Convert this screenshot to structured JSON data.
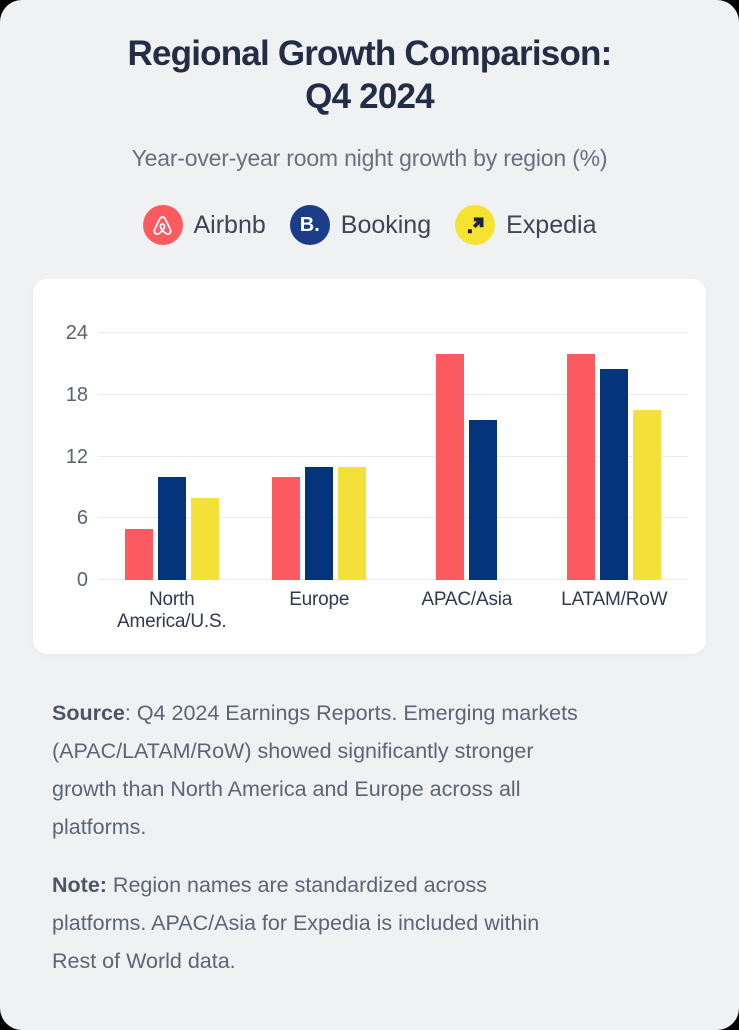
{
  "page": {
    "title_line1": "Regional Growth Comparison:",
    "title_line2": "Q4 2024",
    "subtitle": "Year-over-year room night growth by region (%)"
  },
  "legend": {
    "items": [
      {
        "label": "Airbnb",
        "color": "#FB5A5F",
        "icon": "airbnb-logo-icon"
      },
      {
        "label": "Booking",
        "color": "#1B3D89",
        "icon": "booking-logo-icon",
        "monogram": "B."
      },
      {
        "label": "Expedia",
        "color": "#F6E331",
        "icon": "expedia-logo-icon"
      }
    ]
  },
  "chart_data": {
    "type": "bar",
    "title": "Regional Growth Comparison: Q4 2024",
    "subtitle": "Year-over-year room night growth by region (%)",
    "categories": [
      "North America/U.S.",
      "Europe",
      "APAC/Asia",
      "LATAM/RoW"
    ],
    "series": [
      {
        "name": "Airbnb",
        "color": "#FB5A60",
        "values": [
          5,
          10,
          22,
          22
        ]
      },
      {
        "name": "Booking",
        "color": "#04357C",
        "values": [
          10,
          11,
          15.5,
          20.5
        ]
      },
      {
        "name": "Expedia",
        "color": "#F3E13A",
        "values": [
          8,
          11,
          null,
          16.5
        ]
      }
    ],
    "unit": "%",
    "xlabel": "",
    "ylabel": "",
    "ylim": [
      0,
      24
    ],
    "yticks": [
      0,
      6,
      12,
      18,
      24
    ],
    "grid": "horizontal",
    "legend_position": "top",
    "note": "No Expedia bar for APAC/Asia (included in Rest of World)"
  },
  "footer": {
    "source_label": "Source",
    "source_text": ": Q4 2024 Earnings Reports. Emerging markets\n(APAC/LATAM/RoW) showed significantly stronger\ngrowth than North America and Europe across all\nplatforms.",
    "note_label": "Note:",
    "note_text": " Region names are standardized across\nplatforms. APAC/Asia for Expedia is included within\nRest of World data."
  }
}
